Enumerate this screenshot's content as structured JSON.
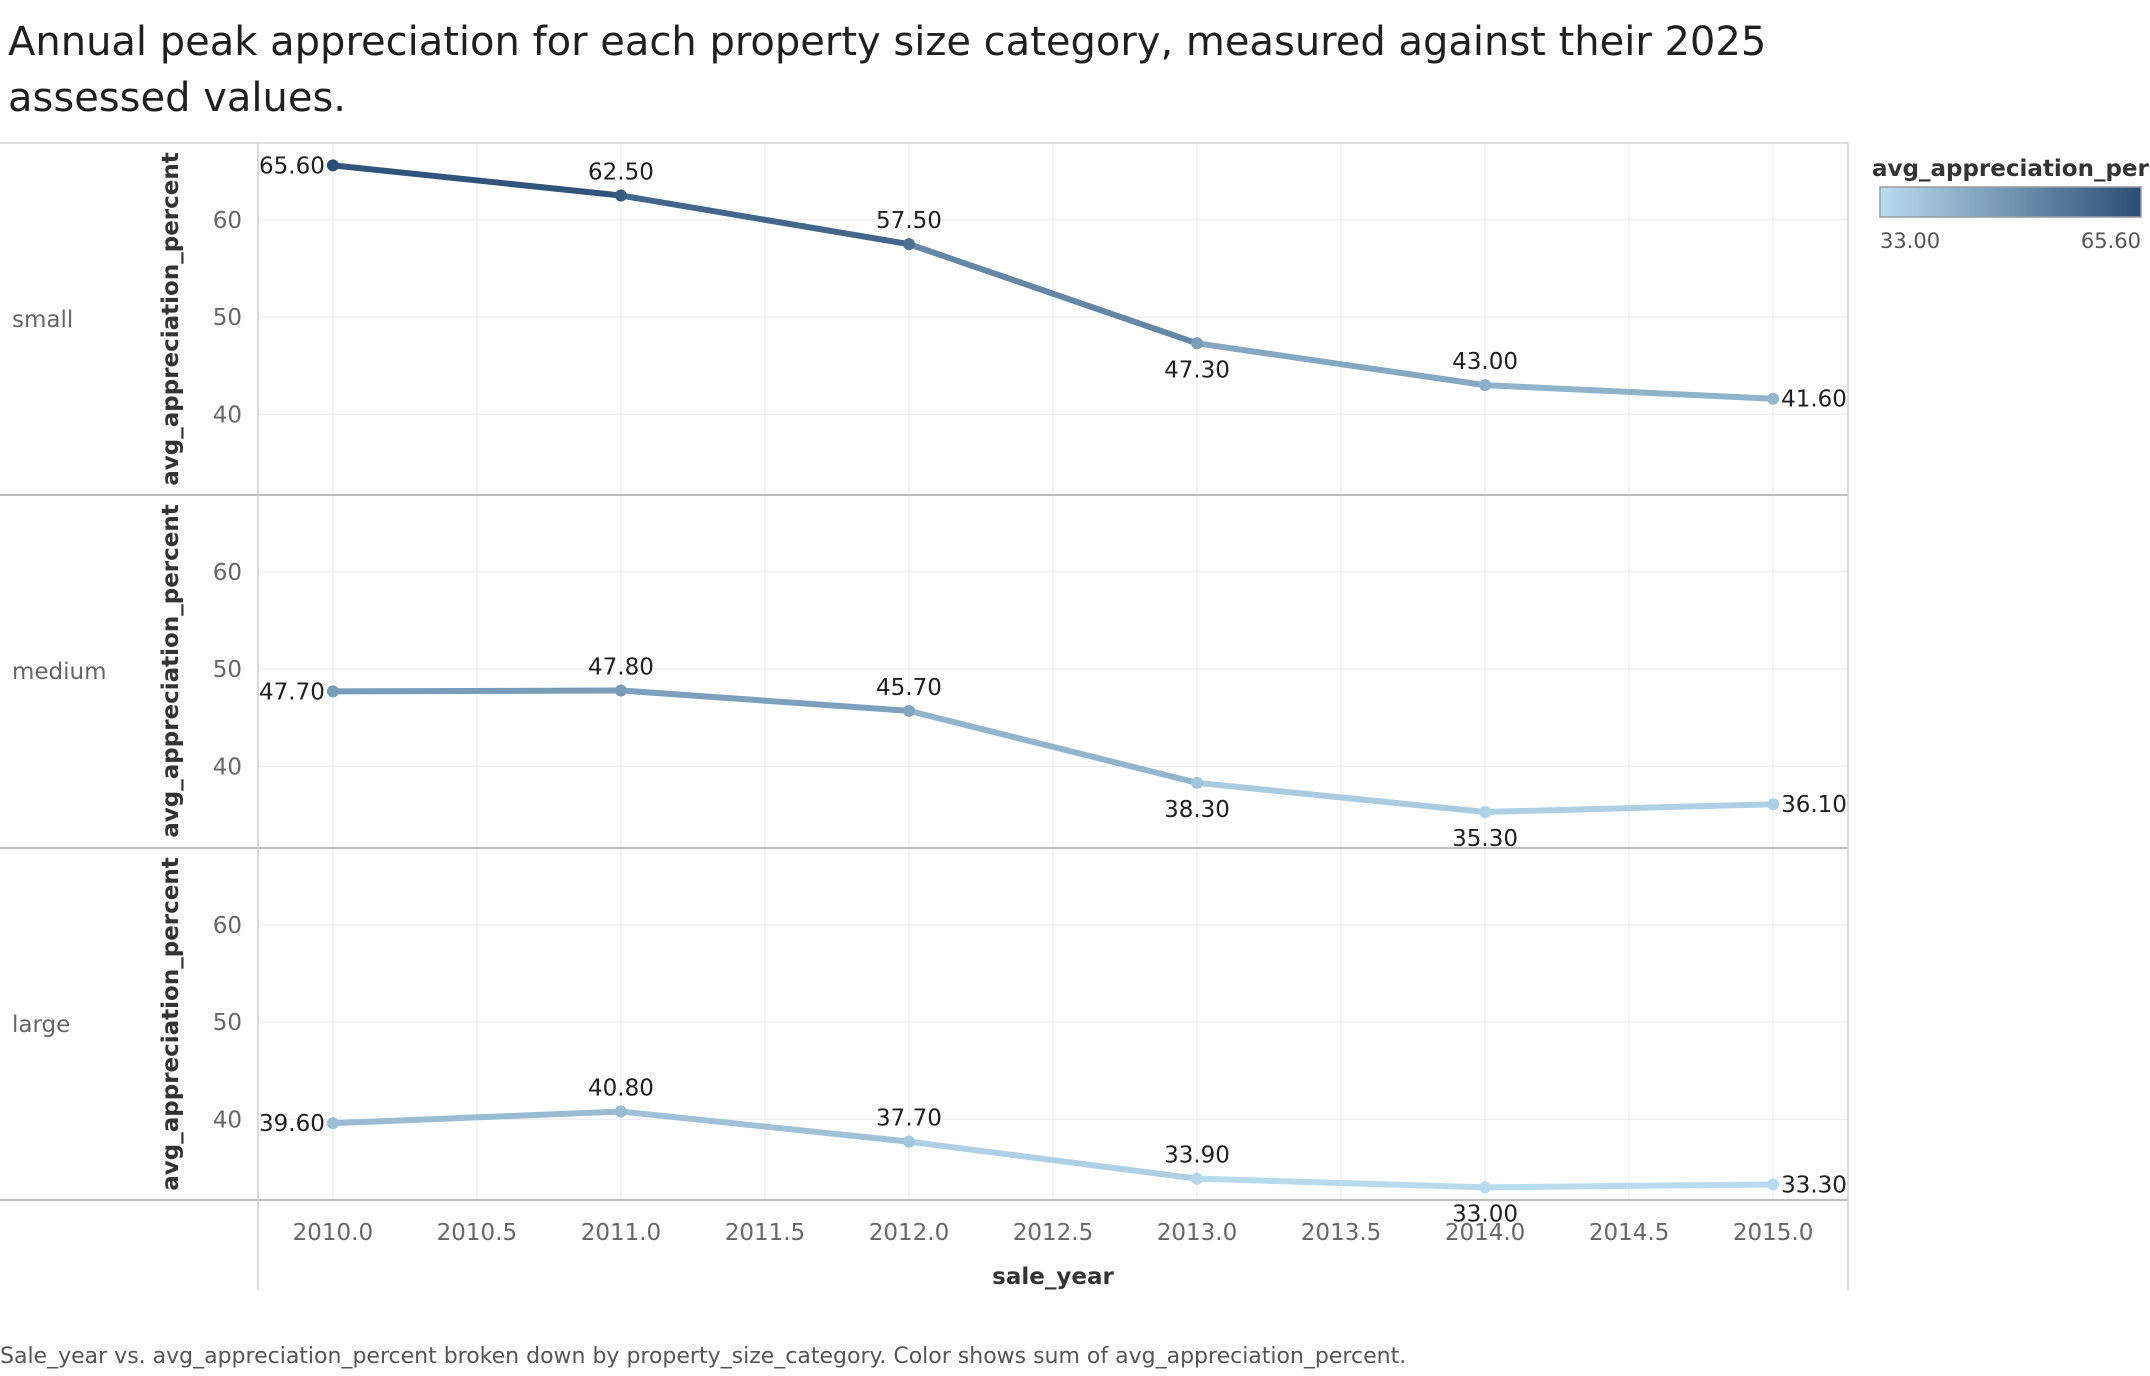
{
  "title": "Annual peak appreciation for each property size category, measured against their 2025 assessed values.",
  "caption": "Sale_year vs. avg_appreciation_percent broken down by property_size_category.  Color shows sum of avg_appreciation_percent.",
  "legend": {
    "title": "avg_appreciation_perc..",
    "min_label": "33.00",
    "max_label": "65.60",
    "color_low": "#b9dcef",
    "color_high": "#2a4d75"
  },
  "chart_data": {
    "type": "line",
    "xlabel": "sale_year",
    "ylabel": "avg_appreciation_percent",
    "x": [
      2010,
      2011,
      2012,
      2013,
      2014,
      2015
    ],
    "xlim": [
      2009.74,
      2015.26
    ],
    "x_ticks": [
      "2010.0",
      "2010.5",
      "2011.0",
      "2011.5",
      "2012.0",
      "2012.5",
      "2013.0",
      "2013.5",
      "2014.0",
      "2014.5",
      "2015.0"
    ],
    "ylim": [
      31.7,
      67.9
    ],
    "y_ticks": [
      "40",
      "50",
      "60"
    ],
    "grid": true,
    "color_range": [
      33.0,
      65.6
    ],
    "series": [
      {
        "name": "small",
        "values": [
          65.6,
          62.5,
          57.5,
          47.3,
          43.0,
          41.6
        ],
        "labels": [
          "65.60",
          "62.50",
          "57.50",
          "47.30",
          "43.00",
          "41.60"
        ]
      },
      {
        "name": "medium",
        "values": [
          47.7,
          47.8,
          45.7,
          38.3,
          35.3,
          36.1
        ],
        "labels": [
          "47.70",
          "47.80",
          "45.70",
          "38.30",
          "35.30",
          "36.10"
        ]
      },
      {
        "name": "large",
        "values": [
          39.6,
          40.8,
          37.7,
          33.9,
          33.0,
          33.3
        ],
        "labels": [
          "39.60",
          "40.80",
          "37.70",
          "33.90",
          "33.00",
          "33.30"
        ]
      }
    ]
  }
}
